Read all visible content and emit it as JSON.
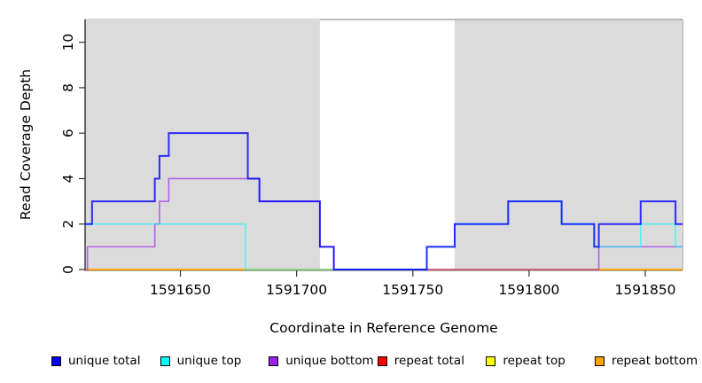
{
  "figure": {
    "background": "#FFFFFF",
    "axis_color": "#1a1a1a",
    "box_top_color": "#777777",
    "shaded_region_color": "#DBDBDB",
    "x_axis": {
      "label": "Coordinate in Reference Genome",
      "ticks": [
        1591650,
        1591700,
        1591750,
        1591800,
        1591850
      ]
    },
    "y_axis": {
      "label": "Read Coverage Depth",
      "ticks": [
        0,
        2,
        4,
        6,
        8,
        10
      ]
    },
    "legend": [
      {
        "label": "unique total",
        "color": "#0000FF"
      },
      {
        "label": "unique top",
        "color": "#00FFFF"
      },
      {
        "label": "unique bottom",
        "color": "#A020F0"
      },
      {
        "label": "repeat total",
        "color": "#FF0000"
      },
      {
        "label": "repeat top",
        "color": "#FFFF00"
      },
      {
        "label": "repeat bottom",
        "color": "#FFA500"
      }
    ]
  },
  "chart_data": {
    "type": "line",
    "step": true,
    "title": "",
    "xlabel": "Coordinate in Reference Genome",
    "ylabel": "Read Coverage Depth",
    "xlim": [
      1591609,
      1591866
    ],
    "ylim": [
      0,
      11
    ],
    "grid": false,
    "legend_position": "bottom",
    "shaded_regions": [
      {
        "x_start": 1591609,
        "x_end": 1591710
      },
      {
        "x_start": 1591768,
        "x_end": 1591866
      }
    ],
    "draw_order": [
      "repeat total",
      "repeat top",
      "repeat bottom",
      "unique bottom",
      "unique top",
      "unique total"
    ],
    "series": [
      {
        "name": "unique total",
        "color": "#0000FF",
        "opacity": 0.8,
        "width": 2.0,
        "points": [
          [
            1591609,
            2
          ],
          [
            1591612,
            3
          ],
          [
            1591639,
            4
          ],
          [
            1591641,
            5
          ],
          [
            1591645,
            6
          ],
          [
            1591679,
            4
          ],
          [
            1591684,
            3
          ],
          [
            1591710,
            1
          ],
          [
            1591716,
            0
          ],
          [
            1591756,
            1
          ],
          [
            1591768,
            2
          ],
          [
            1591791,
            3
          ],
          [
            1591814,
            2
          ],
          [
            1591828,
            1
          ],
          [
            1591830,
            2
          ],
          [
            1591848,
            3
          ],
          [
            1591863,
            2
          ]
        ]
      },
      {
        "name": "unique top",
        "color": "#00FFFF",
        "opacity": 0.6,
        "width": 1.6,
        "points": [
          [
            1591609,
            2
          ],
          [
            1591678,
            0
          ],
          [
            1591756,
            1
          ],
          [
            1591768,
            2
          ],
          [
            1591791,
            3
          ],
          [
            1591814,
            2
          ],
          [
            1591828,
            1
          ],
          [
            1591848,
            2
          ],
          [
            1591863,
            1
          ]
        ]
      },
      {
        "name": "unique bottom",
        "color": "#A020F0",
        "opacity": 0.65,
        "width": 1.6,
        "points": [
          [
            1591609,
            0
          ],
          [
            1591610,
            1
          ],
          [
            1591639,
            2
          ],
          [
            1591641,
            3
          ],
          [
            1591645,
            4
          ],
          [
            1591684,
            3
          ],
          [
            1591710,
            1
          ],
          [
            1591716,
            0
          ],
          [
            1591830,
            1
          ]
        ]
      },
      {
        "name": "repeat total",
        "color": "#FF0000",
        "opacity": 1,
        "width": 1.6,
        "points": [
          [
            1591609,
            0
          ]
        ]
      },
      {
        "name": "repeat top",
        "color": "#FFFF00",
        "opacity": 1,
        "width": 1.6,
        "points": [
          [
            1591609,
            0
          ]
        ]
      },
      {
        "name": "repeat bottom",
        "color": "#FFA500",
        "opacity": 1,
        "width": 1.6,
        "points": [
          [
            1591609,
            0
          ]
        ]
      }
    ]
  }
}
